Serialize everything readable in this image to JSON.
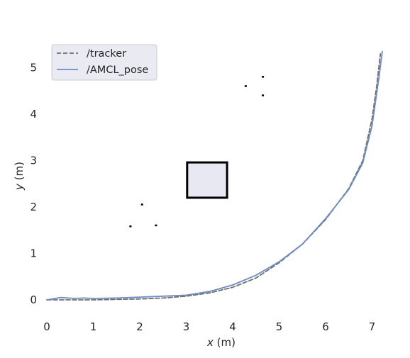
{
  "chart_data": {
    "type": "line",
    "xlabel_var": "x",
    "xlabel_unit": " (m)",
    "ylabel_var": "y",
    "ylabel_unit": " (m)",
    "xlim": [
      0,
      7.25
    ],
    "ylim": [
      -0.3,
      5.5
    ],
    "xticks": [
      "0",
      "1",
      "2",
      "3",
      "4",
      "5",
      "6",
      "7"
    ],
    "yticks": [
      "0",
      "1",
      "2",
      "3",
      "4",
      "5"
    ],
    "grid": false,
    "legend_position": "top-left",
    "series": [
      {
        "name": "/tracker",
        "style": "dashed",
        "color": "#6f6f6f",
        "x": [
          0,
          0.5,
          1.0,
          1.5,
          2.0,
          2.5,
          3.0,
          3.5,
          4.0,
          4.5,
          5.0,
          5.5,
          6.0,
          6.5,
          6.8,
          7.0,
          7.1,
          7.18
        ],
        "y": [
          0,
          0.0,
          0.0,
          0.01,
          0.02,
          0.04,
          0.08,
          0.15,
          0.27,
          0.47,
          0.8,
          1.2,
          1.73,
          2.4,
          3.0,
          3.9,
          4.6,
          5.3
        ]
      },
      {
        "name": "/AMCL_pose",
        "style": "solid",
        "color": "#6d8bc4",
        "x": [
          0,
          0.3,
          0.6,
          0.8,
          1.0,
          1.5,
          2.0,
          2.5,
          3.0,
          3.5,
          4.0,
          4.5,
          5.0,
          5.5,
          6.0,
          6.5,
          6.8,
          7.0,
          7.15,
          7.22
        ],
        "y": [
          0,
          0.05,
          0.03,
          0.04,
          0.03,
          0.04,
          0.06,
          0.08,
          0.1,
          0.18,
          0.32,
          0.53,
          0.82,
          1.2,
          1.75,
          2.38,
          2.95,
          3.75,
          4.8,
          5.35
        ]
      }
    ],
    "occupancy_map": {
      "obstacle_box": {
        "x": [
          3.02,
          3.88
        ],
        "y": [
          2.2,
          2.96
        ]
      },
      "specks": [
        {
          "x": 4.28,
          "y": 4.6
        },
        {
          "x": 4.65,
          "y": 4.8
        },
        {
          "x": 4.65,
          "y": 4.4
        },
        {
          "x": 2.05,
          "y": 2.05
        },
        {
          "x": 1.8,
          "y": 1.58
        },
        {
          "x": 2.35,
          "y": 1.6
        }
      ]
    }
  }
}
